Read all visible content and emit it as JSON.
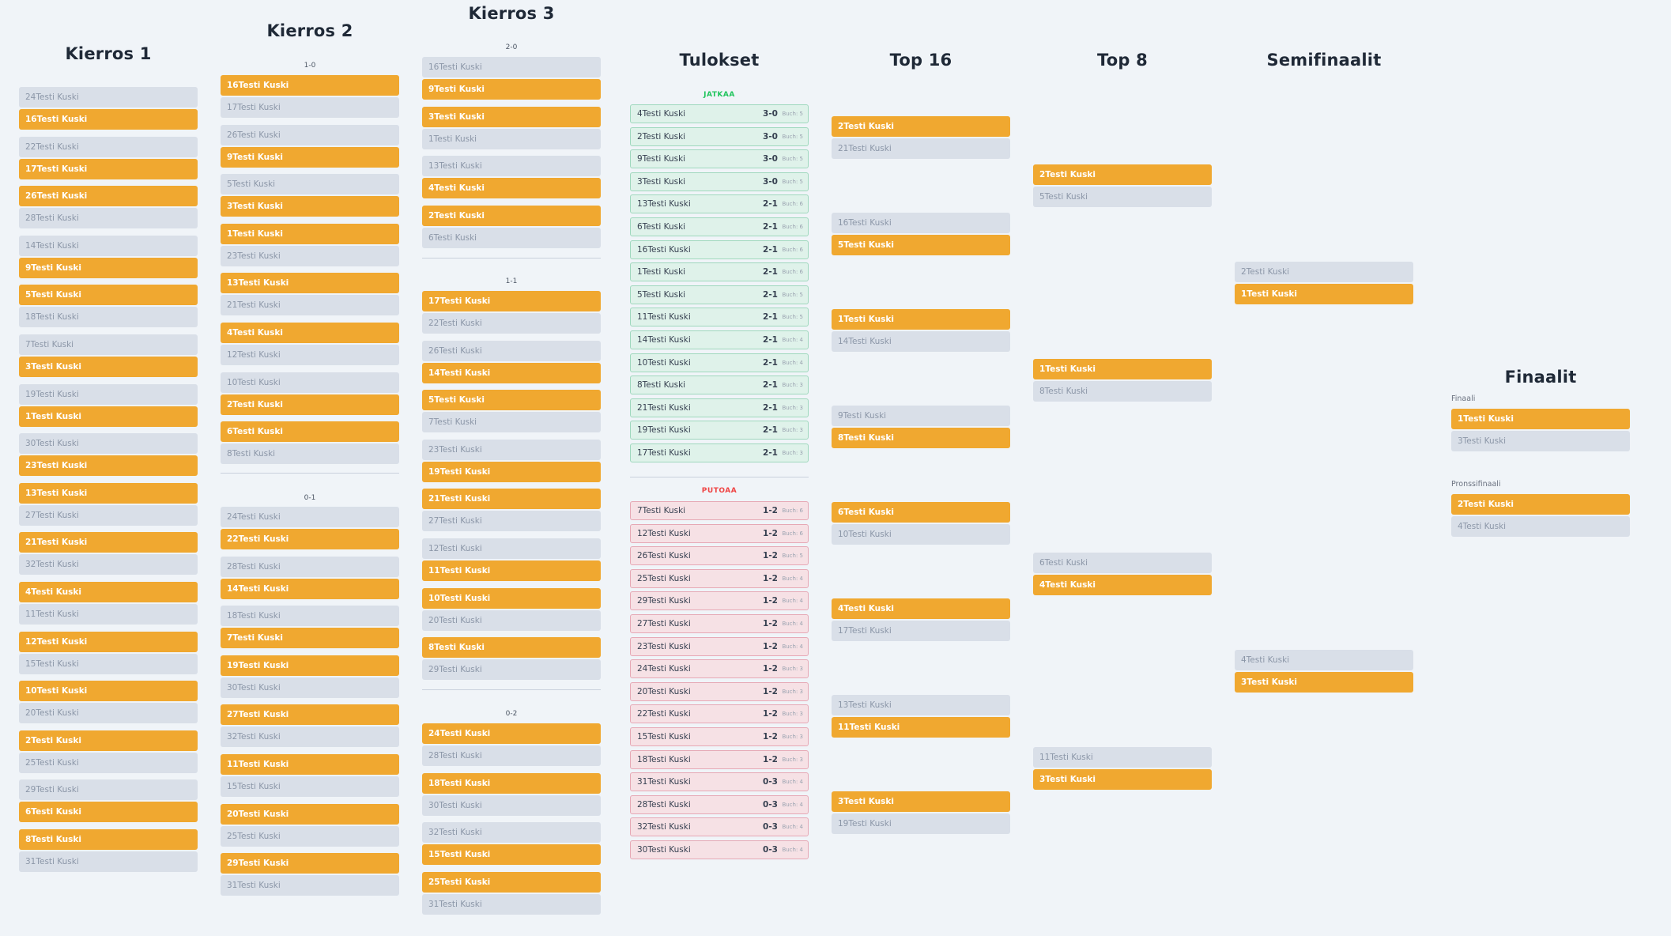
{
  "round1": {
    "title": "Kierros 1",
    "matches": [
      [
        [
          "24Testi Kuski",
          "l"
        ],
        [
          "16Testi Kuski",
          "w"
        ]
      ],
      [
        [
          "22Testi Kuski",
          "l"
        ],
        [
          "17Testi Kuski",
          "w"
        ]
      ],
      [
        [
          "26Testi Kuski",
          "w"
        ],
        [
          "28Testi Kuski",
          "l"
        ]
      ],
      [
        [
          "14Testi Kuski",
          "l"
        ],
        [
          "9Testi Kuski",
          "w"
        ]
      ],
      [
        [
          "5Testi Kuski",
          "w"
        ],
        [
          "18Testi Kuski",
          "l"
        ]
      ],
      [
        [
          "7Testi Kuski",
          "l"
        ],
        [
          "3Testi Kuski",
          "w"
        ]
      ],
      [
        [
          "19Testi Kuski",
          "l"
        ],
        [
          "1Testi Kuski",
          "w"
        ]
      ],
      [
        [
          "30Testi Kuski",
          "l"
        ],
        [
          "23Testi Kuski",
          "w"
        ]
      ],
      [
        [
          "13Testi Kuski",
          "w"
        ],
        [
          "27Testi Kuski",
          "l"
        ]
      ],
      [
        [
          "21Testi Kuski",
          "w"
        ],
        [
          "32Testi Kuski",
          "l"
        ]
      ],
      [
        [
          "4Testi Kuski",
          "w"
        ],
        [
          "11Testi Kuski",
          "l"
        ]
      ],
      [
        [
          "12Testi Kuski",
          "w"
        ],
        [
          "15Testi Kuski",
          "l"
        ]
      ],
      [
        [
          "10Testi Kuski",
          "w"
        ],
        [
          "20Testi Kuski",
          "l"
        ]
      ],
      [
        [
          "2Testi Kuski",
          "w"
        ],
        [
          "25Testi Kuski",
          "l"
        ]
      ],
      [
        [
          "29Testi Kuski",
          "l"
        ],
        [
          "6Testi Kuski",
          "w"
        ]
      ],
      [
        [
          "8Testi Kuski",
          "w"
        ],
        [
          "31Testi Kuski",
          "l"
        ]
      ]
    ]
  },
  "round2": {
    "title": "Kierros 2",
    "groups": [
      {
        "label": "1-0",
        "matches": [
          [
            [
              "16Testi Kuski",
              "w"
            ],
            [
              "17Testi Kuski",
              "l"
            ]
          ],
          [
            [
              "26Testi Kuski",
              "l"
            ],
            [
              "9Testi Kuski",
              "w"
            ]
          ],
          [
            [
              "5Testi Kuski",
              "l"
            ],
            [
              "3Testi Kuski",
              "w"
            ]
          ],
          [
            [
              "1Testi Kuski",
              "w"
            ],
            [
              "23Testi Kuski",
              "l"
            ]
          ],
          [
            [
              "13Testi Kuski",
              "w"
            ],
            [
              "21Testi Kuski",
              "l"
            ]
          ],
          [
            [
              "4Testi Kuski",
              "w"
            ],
            [
              "12Testi Kuski",
              "l"
            ]
          ],
          [
            [
              "10Testi Kuski",
              "l"
            ],
            [
              "2Testi Kuski",
              "w"
            ]
          ],
          [
            [
              "6Testi Kuski",
              "w"
            ],
            [
              "8Testi Kuski",
              "l"
            ]
          ]
        ]
      },
      {
        "label": "0-1",
        "matches": [
          [
            [
              "24Testi Kuski",
              "l"
            ],
            [
              "22Testi Kuski",
              "w"
            ]
          ],
          [
            [
              "28Testi Kuski",
              "l"
            ],
            [
              "14Testi Kuski",
              "w"
            ]
          ],
          [
            [
              "18Testi Kuski",
              "l"
            ],
            [
              "7Testi Kuski",
              "w"
            ]
          ],
          [
            [
              "19Testi Kuski",
              "w"
            ],
            [
              "30Testi Kuski",
              "l"
            ]
          ],
          [
            [
              "27Testi Kuski",
              "w"
            ],
            [
              "32Testi Kuski",
              "l"
            ]
          ],
          [
            [
              "11Testi Kuski",
              "w"
            ],
            [
              "15Testi Kuski",
              "l"
            ]
          ],
          [
            [
              "20Testi Kuski",
              "w"
            ],
            [
              "25Testi Kuski",
              "l"
            ]
          ],
          [
            [
              "29Testi Kuski",
              "w"
            ],
            [
              "31Testi Kuski",
              "l"
            ]
          ]
        ]
      }
    ]
  },
  "round3": {
    "title": "Kierros 3",
    "groups": [
      {
        "label": "2-0",
        "matches": [
          [
            [
              "16Testi Kuski",
              "l"
            ],
            [
              "9Testi Kuski",
              "w"
            ]
          ],
          [
            [
              "3Testi Kuski",
              "w"
            ],
            [
              "1Testi Kuski",
              "l"
            ]
          ],
          [
            [
              "13Testi Kuski",
              "l"
            ],
            [
              "4Testi Kuski",
              "w"
            ]
          ],
          [
            [
              "2Testi Kuski",
              "w"
            ],
            [
              "6Testi Kuski",
              "l"
            ]
          ]
        ]
      },
      {
        "label": "1-1",
        "matches": [
          [
            [
              "17Testi Kuski",
              "w"
            ],
            [
              "22Testi Kuski",
              "l"
            ]
          ],
          [
            [
              "26Testi Kuski",
              "l"
            ],
            [
              "14Testi Kuski",
              "w"
            ]
          ],
          [
            [
              "5Testi Kuski",
              "w"
            ],
            [
              "7Testi Kuski",
              "l"
            ]
          ],
          [
            [
              "23Testi Kuski",
              "l"
            ],
            [
              "19Testi Kuski",
              "w"
            ]
          ],
          [
            [
              "21Testi Kuski",
              "w"
            ],
            [
              "27Testi Kuski",
              "l"
            ]
          ],
          [
            [
              "12Testi Kuski",
              "l"
            ],
            [
              "11Testi Kuski",
              "w"
            ]
          ],
          [
            [
              "10Testi Kuski",
              "w"
            ],
            [
              "20Testi Kuski",
              "l"
            ]
          ],
          [
            [
              "8Testi Kuski",
              "w"
            ],
            [
              "29Testi Kuski",
              "l"
            ]
          ]
        ]
      },
      {
        "label": "0-2",
        "matches": [
          [
            [
              "24Testi Kuski",
              "w"
            ],
            [
              "28Testi Kuski",
              "l"
            ]
          ],
          [
            [
              "18Testi Kuski",
              "w"
            ],
            [
              "30Testi Kuski",
              "l"
            ]
          ],
          [
            [
              "32Testi Kuski",
              "l"
            ],
            [
              "15Testi Kuski",
              "w"
            ]
          ],
          [
            [
              "25Testi Kuski",
              "w"
            ],
            [
              "31Testi Kuski",
              "l"
            ]
          ]
        ]
      }
    ]
  },
  "results": {
    "title": "Tulokset",
    "advance_label": "JATKAA",
    "eliminated_label": "PUTOAA",
    "advance_color": "#22c55e",
    "eliminated_color": "#ef4444",
    "advance": [
      [
        "4Testi Kuski",
        "3-0",
        "Buch: 5"
      ],
      [
        "2Testi Kuski",
        "3-0",
        "Buch: 5"
      ],
      [
        "9Testi Kuski",
        "3-0",
        "Buch: 5"
      ],
      [
        "3Testi Kuski",
        "3-0",
        "Buch: 5"
      ],
      [
        "13Testi Kuski",
        "2-1",
        "Buch: 6"
      ],
      [
        "6Testi Kuski",
        "2-1",
        "Buch: 6"
      ],
      [
        "16Testi Kuski",
        "2-1",
        "Buch: 6"
      ],
      [
        "1Testi Kuski",
        "2-1",
        "Buch: 6"
      ],
      [
        "5Testi Kuski",
        "2-1",
        "Buch: 5"
      ],
      [
        "11Testi Kuski",
        "2-1",
        "Buch: 5"
      ],
      [
        "14Testi Kuski",
        "2-1",
        "Buch: 4"
      ],
      [
        "10Testi Kuski",
        "2-1",
        "Buch: 4"
      ],
      [
        "8Testi Kuski",
        "2-1",
        "Buch: 3"
      ],
      [
        "21Testi Kuski",
        "2-1",
        "Buch: 3"
      ],
      [
        "19Testi Kuski",
        "2-1",
        "Buch: 3"
      ],
      [
        "17Testi Kuski",
        "2-1",
        "Buch: 3"
      ]
    ],
    "eliminated": [
      [
        "7Testi Kuski",
        "1-2",
        "Buch: 6"
      ],
      [
        "12Testi Kuski",
        "1-2",
        "Buch: 6"
      ],
      [
        "26Testi Kuski",
        "1-2",
        "Buch: 5"
      ],
      [
        "25Testi Kuski",
        "1-2",
        "Buch: 4"
      ],
      [
        "29Testi Kuski",
        "1-2",
        "Buch: 4"
      ],
      [
        "27Testi Kuski",
        "1-2",
        "Buch: 4"
      ],
      [
        "23Testi Kuski",
        "1-2",
        "Buch: 4"
      ],
      [
        "24Testi Kuski",
        "1-2",
        "Buch: 3"
      ],
      [
        "20Testi Kuski",
        "1-2",
        "Buch: 3"
      ],
      [
        "22Testi Kuski",
        "1-2",
        "Buch: 3"
      ],
      [
        "15Testi Kuski",
        "1-2",
        "Buch: 3"
      ],
      [
        "18Testi Kuski",
        "1-2",
        "Buch: 3"
      ],
      [
        "31Testi Kuski",
        "0-3",
        "Buch: 4"
      ],
      [
        "28Testi Kuski",
        "0-3",
        "Buch: 4"
      ],
      [
        "32Testi Kuski",
        "0-3",
        "Buch: 4"
      ],
      [
        "30Testi Kuski",
        "0-3",
        "Buch: 4"
      ]
    ]
  },
  "top16": {
    "title": "Top 16",
    "matches": [
      [
        [
          "2Testi Kuski",
          "w"
        ],
        [
          "21Testi Kuski",
          "l"
        ]
      ],
      [
        [
          "16Testi Kuski",
          "l"
        ],
        [
          "5Testi Kuski",
          "w"
        ]
      ],
      [
        [
          "1Testi Kuski",
          "w"
        ],
        [
          "14Testi Kuski",
          "l"
        ]
      ],
      [
        [
          "9Testi Kuski",
          "l"
        ],
        [
          "8Testi Kuski",
          "w"
        ]
      ],
      [
        [
          "6Testi Kuski",
          "w"
        ],
        [
          "10Testi Kuski",
          "l"
        ]
      ],
      [
        [
          "4Testi Kuski",
          "w"
        ],
        [
          "17Testi Kuski",
          "l"
        ]
      ],
      [
        [
          "13Testi Kuski",
          "l"
        ],
        [
          "11Testi Kuski",
          "w"
        ]
      ],
      [
        [
          "3Testi Kuski",
          "w"
        ],
        [
          "19Testi Kuski",
          "l"
        ]
      ]
    ]
  },
  "top8": {
    "title": "Top 8",
    "matches": [
      [
        [
          "2Testi Kuski",
          "w"
        ],
        [
          "5Testi Kuski",
          "l"
        ]
      ],
      [
        [
          "1Testi Kuski",
          "w"
        ],
        [
          "8Testi Kuski",
          "l"
        ]
      ],
      [
        [
          "6Testi Kuski",
          "l"
        ],
        [
          "4Testi Kuski",
          "w"
        ]
      ],
      [
        [
          "11Testi Kuski",
          "l"
        ],
        [
          "3Testi Kuski",
          "w"
        ]
      ]
    ]
  },
  "semis": {
    "title": "Semifinaalit",
    "matches": [
      [
        [
          "2Testi Kuski",
          "l"
        ],
        [
          "1Testi Kuski",
          "w"
        ]
      ],
      [
        [
          "4Testi Kuski",
          "l"
        ],
        [
          "3Testi Kuski",
          "w"
        ]
      ]
    ]
  },
  "finals": {
    "title": "Finaalit",
    "final_label": "Finaali",
    "final": [
      [
        "1Testi Kuski",
        "w"
      ],
      [
        "3Testi Kuski",
        "l"
      ]
    ],
    "bronze_label": "Pronssifinaali",
    "bronze": [
      [
        "2Testi Kuski",
        "w"
      ],
      [
        "4Testi Kuski",
        "l"
      ]
    ]
  },
  "colors": {
    "winner": "#f0a830",
    "loser": "#d9dfe8",
    "background": "#f0f4f8"
  }
}
